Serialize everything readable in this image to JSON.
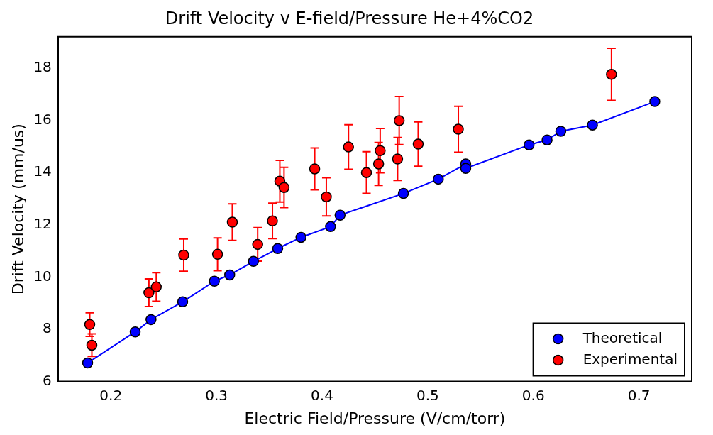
{
  "chart_data": {
    "type": "scatter",
    "title": "Drift Velocity v E-field/Pressure He+4%CO2",
    "xlabel": "Electric Field/Pressure (V/cm/torr)",
    "ylabel": "Drift Velocity (mm/us)",
    "xlim": [
      0.15,
      0.75
    ],
    "xticks": [
      0.2,
      0.3,
      0.4,
      0.5,
      0.6,
      0.7
    ],
    "ylim": [
      6,
      19.2
    ],
    "yticks": [
      6,
      8,
      10,
      12,
      14,
      16,
      18
    ],
    "grid": false,
    "legend": "bottom right",
    "marker": "circle",
    "line_style": "solid",
    "series": [
      {
        "name": "Theoretical",
        "type": "line",
        "color": "#0000ff",
        "x": [
          0.178,
          0.223,
          0.238,
          0.268,
          0.298,
          0.3125,
          0.335,
          0.358,
          0.38,
          0.408,
          0.417,
          0.477,
          0.51,
          0.536,
          0.536,
          0.596,
          0.613,
          0.626,
          0.656,
          0.715
        ],
        "values": [
          6.71,
          7.9,
          8.37,
          9.05,
          9.84,
          10.08,
          10.6,
          11.09,
          11.52,
          11.93,
          12.37,
          13.2,
          13.75,
          14.33,
          14.16,
          15.06,
          15.25,
          15.58,
          15.82,
          16.72
        ]
      },
      {
        "name": "Experimental",
        "type": "scatter",
        "color": "#ff0000",
        "x": [
          0.18,
          0.182,
          0.236,
          0.243,
          0.269,
          0.301,
          0.315,
          0.339,
          0.353,
          0.36,
          0.364,
          0.393,
          0.404,
          0.425,
          0.442,
          0.4535,
          0.455,
          0.4715,
          0.473,
          0.491,
          0.529,
          0.674
        ],
        "values": [
          8.18,
          7.39,
          9.4,
          9.62,
          10.84,
          10.87,
          12.1,
          11.25,
          12.15,
          13.67,
          13.43,
          14.14,
          13.07,
          14.98,
          14.0,
          14.33,
          14.84,
          14.52,
          15.99,
          15.09,
          15.66,
          17.76
        ],
        "errors": [
          0.45,
          0.43,
          0.53,
          0.55,
          0.62,
          0.63,
          0.7,
          0.64,
          0.68,
          0.8,
          0.77,
          0.8,
          0.73,
          0.85,
          0.8,
          0.82,
          0.85,
          0.82,
          0.92,
          0.85,
          0.88,
          1.0
        ]
      }
    ]
  }
}
